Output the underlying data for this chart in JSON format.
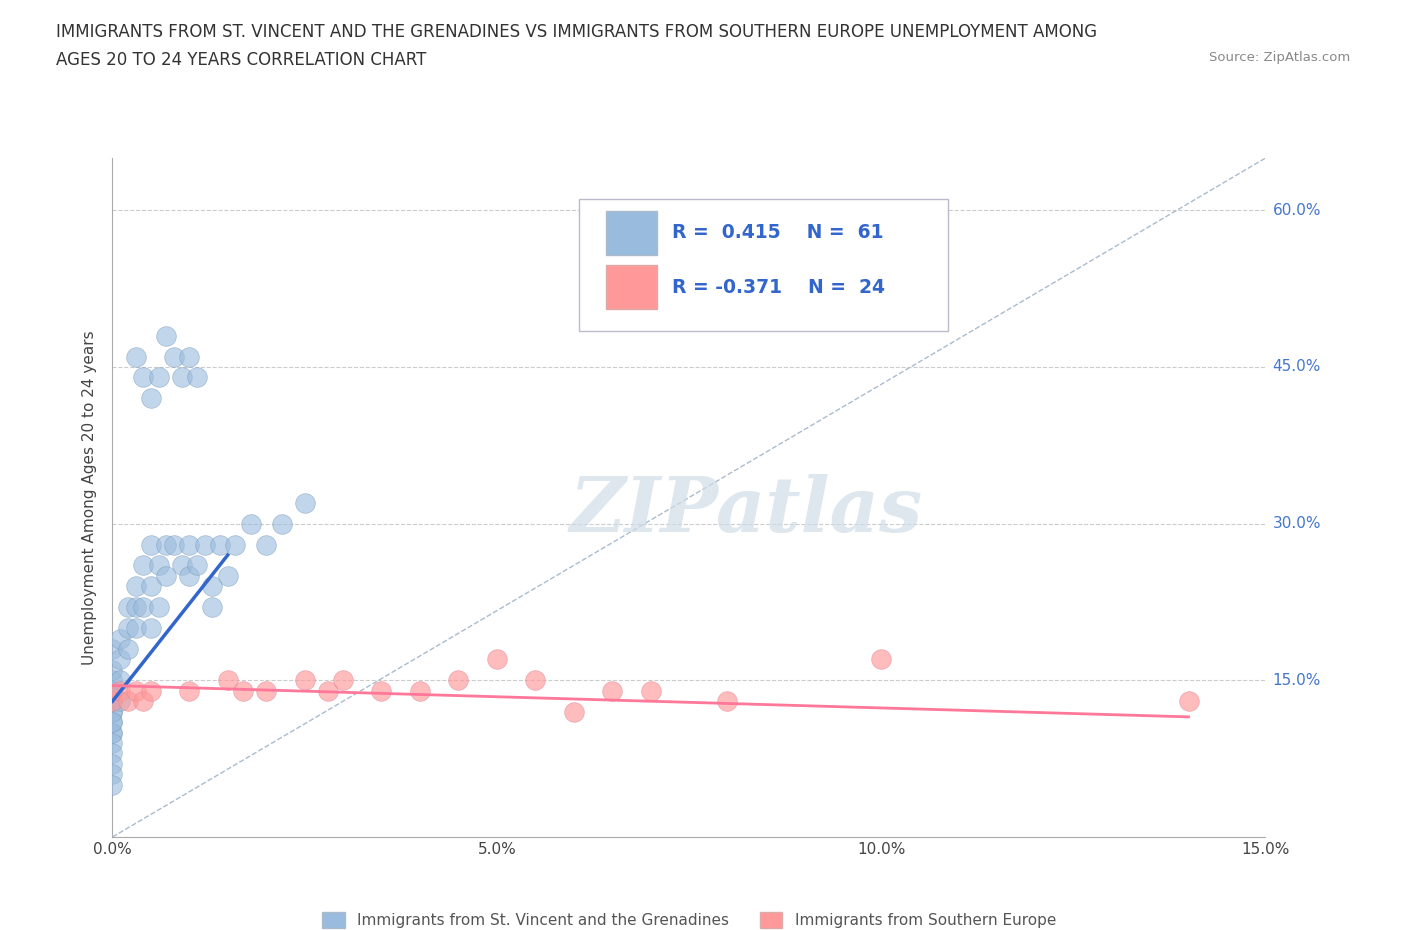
{
  "title_line1": "IMMIGRANTS FROM ST. VINCENT AND THE GRENADINES VS IMMIGRANTS FROM SOUTHERN EUROPE UNEMPLOYMENT AMONG",
  "title_line2": "AGES 20 TO 24 YEARS CORRELATION CHART",
  "source_text": "Source: ZipAtlas.com",
  "ylabel": "Unemployment Among Ages 20 to 24 years",
  "xlim": [
    0.0,
    0.15
  ],
  "ylim": [
    0.0,
    0.65
  ],
  "xticks": [
    0.0,
    0.05,
    0.1,
    0.15
  ],
  "xticklabels": [
    "0.0%",
    "5.0%",
    "10.0%",
    "15.0%"
  ],
  "ytick_positions": [
    0.15,
    0.3,
    0.45,
    0.6
  ],
  "ytick_labels": [
    "15.0%",
    "30.0%",
    "45.0%",
    "60.0%"
  ],
  "blue_color": "#99BBDD",
  "pink_color": "#FF9999",
  "trend_blue": "#3366CC",
  "trend_pink": "#FF7799",
  "watermark_text": "ZIPatlas",
  "legend1_label": "Immigrants from St. Vincent and the Grenadines",
  "legend2_label": "Immigrants from Southern Europe",
  "blue_scatter_x": [
    0.0,
    0.0,
    0.0,
    0.0,
    0.0,
    0.0,
    0.0,
    0.0,
    0.0,
    0.0,
    0.0,
    0.0,
    0.0,
    0.0,
    0.0,
    0.0,
    0.0,
    0.0,
    0.001,
    0.001,
    0.001,
    0.001,
    0.002,
    0.002,
    0.002,
    0.003,
    0.003,
    0.003,
    0.004,
    0.004,
    0.005,
    0.005,
    0.005,
    0.006,
    0.006,
    0.007,
    0.007,
    0.008,
    0.009,
    0.01,
    0.01,
    0.011,
    0.012,
    0.013,
    0.013,
    0.014,
    0.015,
    0.016,
    0.018,
    0.02,
    0.022,
    0.025,
    0.003,
    0.004,
    0.005,
    0.006,
    0.007,
    0.008,
    0.009,
    0.01,
    0.011
  ],
  "blue_scatter_y": [
    0.1,
    0.11,
    0.12,
    0.13,
    0.14,
    0.15,
    0.16,
    0.18,
    0.1,
    0.09,
    0.08,
    0.07,
    0.06,
    0.05,
    0.13,
    0.14,
    0.12,
    0.11,
    0.15,
    0.17,
    0.19,
    0.13,
    0.18,
    0.2,
    0.22,
    0.22,
    0.24,
    0.2,
    0.22,
    0.26,
    0.28,
    0.24,
    0.2,
    0.26,
    0.22,
    0.28,
    0.25,
    0.28,
    0.26,
    0.25,
    0.28,
    0.26,
    0.28,
    0.24,
    0.22,
    0.28,
    0.25,
    0.28,
    0.3,
    0.28,
    0.3,
    0.32,
    0.46,
    0.44,
    0.42,
    0.44,
    0.48,
    0.46,
    0.44,
    0.46,
    0.44
  ],
  "pink_scatter_x": [
    0.0,
    0.001,
    0.002,
    0.003,
    0.004,
    0.005,
    0.01,
    0.015,
    0.017,
    0.02,
    0.025,
    0.028,
    0.03,
    0.035,
    0.04,
    0.045,
    0.05,
    0.055,
    0.06,
    0.065,
    0.07,
    0.08,
    0.1,
    0.14
  ],
  "pink_scatter_y": [
    0.13,
    0.14,
    0.13,
    0.14,
    0.13,
    0.14,
    0.14,
    0.15,
    0.14,
    0.14,
    0.15,
    0.14,
    0.15,
    0.14,
    0.14,
    0.15,
    0.17,
    0.15,
    0.12,
    0.14,
    0.14,
    0.13,
    0.17,
    0.13
  ],
  "blue_trend_x": [
    0.0,
    0.015
  ],
  "blue_trend_y": [
    0.13,
    0.27
  ],
  "pink_trend_x": [
    0.0,
    0.14
  ],
  "pink_trend_y": [
    0.145,
    0.115
  ],
  "ref_line_x": [
    0.0,
    0.15
  ],
  "ref_line_y": [
    0.0,
    0.65
  ],
  "grid_color": "#CCCCCC",
  "grid_style": "--",
  "background_color": "#FFFFFF"
}
